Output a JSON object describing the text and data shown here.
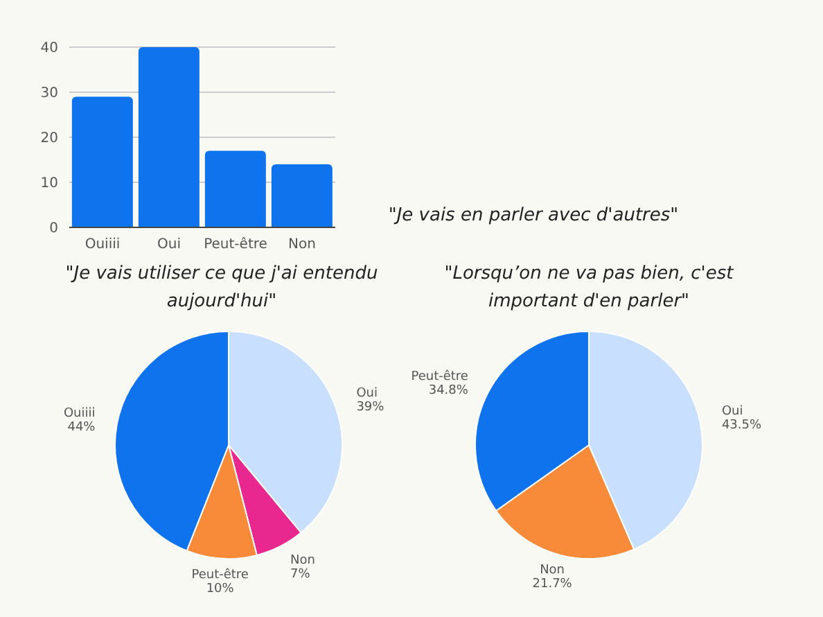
{
  "chart_data": [
    {
      "type": "bar",
      "categories": [
        "Ouiiii",
        "Oui",
        "Peut-être",
        "Non"
      ],
      "values": [
        29,
        40,
        17,
        14
      ],
      "color": "#0f73ee",
      "ylim": [
        0,
        40
      ],
      "yticks": [
        0,
        10,
        20,
        30,
        40
      ],
      "grid": "y"
    },
    {
      "type": "other",
      "title": "\"Je vais en parler avec d'autres\""
    },
    {
      "type": "pie",
      "title": "\"Je vais utiliser ce que j'ai entendu aujourd'hui\"",
      "categories": [
        "Oui",
        "Non",
        "Peut-être",
        "Ouiiii"
      ],
      "values": [
        39,
        7,
        10,
        44
      ],
      "colors": [
        "#c8dffd",
        "#e8288f",
        "#f78b3a",
        "#0f73ee"
      ],
      "value_labels": [
        "39%",
        "7%",
        "10%",
        "44%"
      ]
    },
    {
      "type": "pie",
      "title": "\"Lorsqu’on ne va pas bien, c'est important d'en parler\"",
      "categories": [
        "Oui",
        "Non",
        "Peut-être"
      ],
      "values": [
        43.5,
        21.7,
        34.8
      ],
      "colors": [
        "#c8dffd",
        "#f78b3a",
        "#0f73ee"
      ],
      "value_labels": [
        "43.5%",
        "21.7%",
        "34.8%"
      ]
    }
  ]
}
